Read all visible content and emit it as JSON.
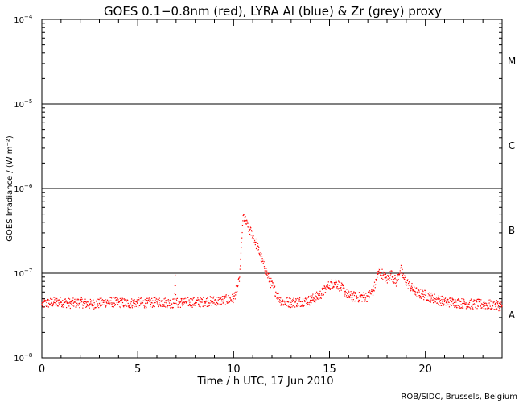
{
  "chart_data": {
    "type": "scatter",
    "title": "GOES 0.1−0.8nm (red), LYRA Al (blue) & Zr (grey) proxy",
    "xlabel": "Time / h UTC, 17 Jun 2010",
    "ylabel": "GOES Irradiance / (W m⁻²)",
    "xlim": [
      0,
      24
    ],
    "ylim": [
      1e-08,
      0.0001
    ],
    "y_scale": "log",
    "x_ticks": [
      0,
      5,
      10,
      15,
      20
    ],
    "x_tick_labels": [
      "0",
      "5",
      "10",
      "15",
      "20"
    ],
    "y_ticks": [
      {
        "value": 0.0001,
        "base": "10",
        "exp": "−4"
      },
      {
        "value": 1e-05,
        "base": "10",
        "exp": "−5"
      },
      {
        "value": 1e-06,
        "base": "10",
        "exp": "−6"
      },
      {
        "value": 1e-07,
        "base": "10",
        "exp": "−7"
      },
      {
        "value": 1e-08,
        "base": "10",
        "exp": "−8"
      }
    ],
    "flare_class_lines": [
      1e-05,
      1e-06,
      1e-07
    ],
    "flare_classes": [
      {
        "label": "M",
        "value": 3.2e-05
      },
      {
        "label": "C",
        "value": 3.2e-06
      },
      {
        "label": "B",
        "value": 3.2e-07
      },
      {
        "label": "A",
        "value": 3.2e-08
      }
    ],
    "series": [
      {
        "color": "#ff0000",
        "marker": "dot",
        "x": [
          0,
          0.5,
          1,
          1.5,
          2,
          2.5,
          3,
          3.5,
          4,
          4.5,
          5,
          5.5,
          6,
          6.5,
          6.9,
          6.95,
          7.0,
          7.5,
          8,
          8.5,
          9,
          9.5,
          10,
          10.3,
          10.5,
          10.6,
          10.75,
          11,
          11.3,
          11.6,
          11.9,
          12.2,
          12.5,
          13,
          13.5,
          14,
          14.5,
          15,
          15.3,
          15.6,
          16,
          16.5,
          17,
          17.3,
          17.6,
          17.8,
          18,
          18.2,
          18.5,
          18.7,
          18.9,
          19.2,
          19.6,
          20,
          20.5,
          21,
          21.5,
          22,
          22.5,
          23,
          23.5,
          24
        ],
        "y": [
          4.3e-08,
          4.5e-08,
          4.6e-08,
          4.4e-08,
          4.5e-08,
          4.3e-08,
          4.4e-08,
          4.6e-08,
          4.5e-08,
          4.4e-08,
          4.5e-08,
          4.4e-08,
          4.6e-08,
          4.5e-08,
          4.4e-08,
          9.5e-08,
          4.4e-08,
          4.6e-08,
          4.5e-08,
          4.6e-08,
          4.7e-08,
          4.8e-08,
          5e-08,
          8e-08,
          4.8e-07,
          4.2e-07,
          3.5e-07,
          2.8e-07,
          1.9e-07,
          1.2e-07,
          8e-08,
          6e-08,
          4.6e-08,
          4.5e-08,
          4.6e-08,
          4.8e-08,
          5.5e-08,
          7.2e-08,
          7.8e-08,
          6.8e-08,
          5.4e-08,
          5.2e-08,
          5.3e-08,
          6.3e-08,
          1.1e-07,
          9.5e-08,
          8.3e-08,
          9.8e-08,
          7.8e-08,
          1.15e-07,
          8.5e-08,
          7e-08,
          5.8e-08,
          5.5e-08,
          5e-08,
          4.6e-08,
          4.5e-08,
          4.4e-08,
          4.3e-08,
          4.3e-08,
          4.2e-08,
          4.1e-08
        ]
      }
    ],
    "credit": "ROB/SIDC, Brussels, Belgium",
    "grid": false
  },
  "colors": {
    "series": "#ff0000",
    "axes": "#000000",
    "background": "#ffffff"
  }
}
